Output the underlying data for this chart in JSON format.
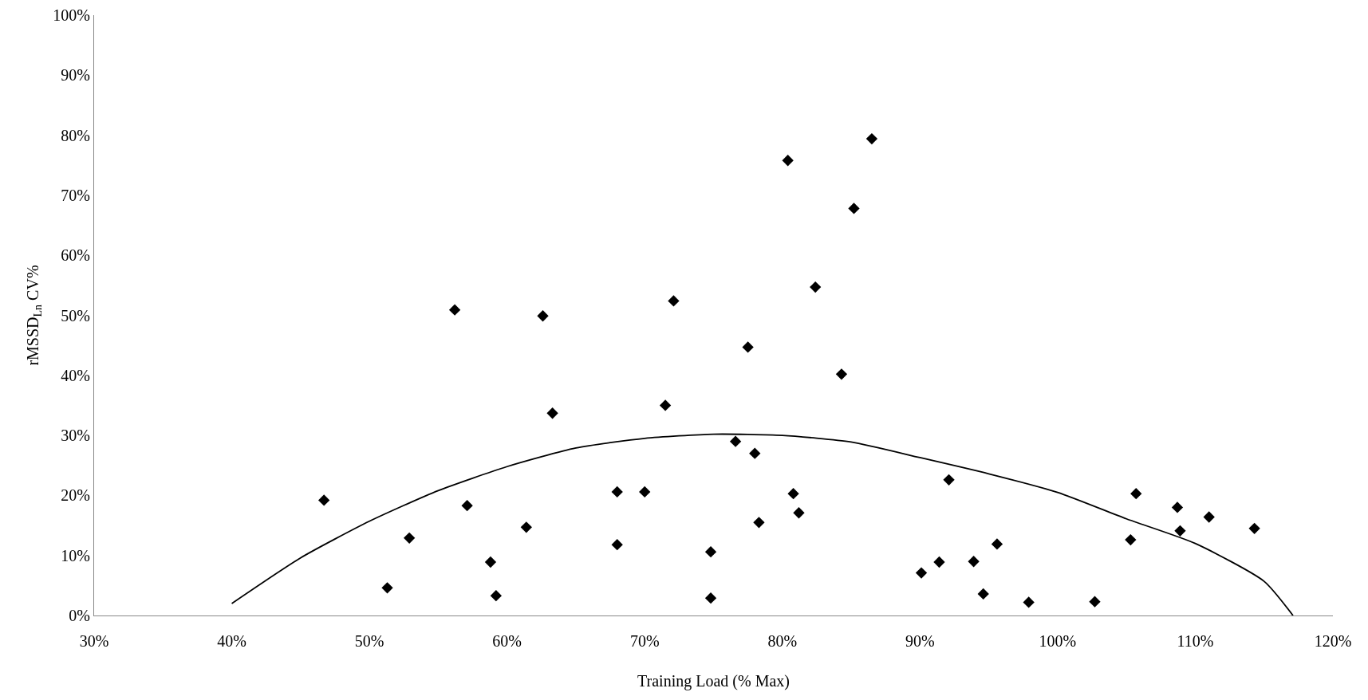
{
  "chart_data": {
    "type": "scatter",
    "xlabel": "Training Load (% Max)",
    "ylabel": "rMSSD$_{Ln}$ CV%",
    "xlim": [
      30,
      120
    ],
    "ylim": [
      0,
      100
    ],
    "xticks": [
      {
        "value": 30,
        "label": "30%"
      },
      {
        "value": 40,
        "label": "40%"
      },
      {
        "value": 50,
        "label": "50%"
      },
      {
        "value": 60,
        "label": "60%"
      },
      {
        "value": 70,
        "label": "70%"
      },
      {
        "value": 80,
        "label": "80%"
      },
      {
        "value": 90,
        "label": "90%"
      },
      {
        "value": 100,
        "label": "100%"
      },
      {
        "value": 110,
        "label": "110%"
      },
      {
        "value": 120,
        "label": "120%"
      }
    ],
    "yticks": [
      {
        "value": 0,
        "label": "0%"
      },
      {
        "value": 10,
        "label": "10%"
      },
      {
        "value": 20,
        "label": "20%"
      },
      {
        "value": 30,
        "label": "30%"
      },
      {
        "value": 40,
        "label": "40%"
      },
      {
        "value": 50,
        "label": "50%"
      },
      {
        "value": 60,
        "label": "60%"
      },
      {
        "value": 70,
        "label": "70%"
      },
      {
        "value": 80,
        "label": "80%"
      },
      {
        "value": 90,
        "label": "90%"
      },
      {
        "value": 100,
        "label": "100%"
      }
    ],
    "grid": false,
    "marker": "diamond",
    "series": [
      {
        "color": "#000000",
        "x": [
          46.7,
          51.3,
          52.9,
          56.2,
          57.1,
          58.8,
          59.2,
          61.4,
          62.6,
          63.3,
          68.0,
          68.0,
          70.0,
          71.5,
          72.1,
          74.8,
          74.8,
          76.6,
          77.5,
          78.0,
          78.3,
          80.4,
          80.8,
          81.2,
          82.4,
          84.3,
          85.2,
          86.5,
          90.1,
          91.4,
          92.1,
          93.9,
          94.6,
          95.6,
          97.9,
          102.7,
          105.3,
          105.7,
          108.7,
          108.9,
          111.0,
          114.3
        ],
        "values": [
          19.2,
          4.6,
          12.9,
          50.9,
          18.3,
          8.9,
          3.3,
          14.7,
          49.9,
          33.7,
          20.6,
          11.8,
          20.6,
          35.0,
          52.4,
          10.6,
          2.9,
          29.0,
          44.7,
          27.0,
          15.5,
          75.8,
          20.3,
          17.1,
          54.7,
          40.2,
          67.8,
          79.4,
          7.1,
          8.9,
          22.6,
          9.0,
          3.6,
          11.9,
          2.2,
          2.3,
          12.6,
          20.3,
          18.0,
          14.1,
          16.4,
          14.5
        ]
      },
      {
        "type": "line",
        "color": "#000000",
        "marker": "none",
        "line_style": "solid",
        "x": [
          40,
          45,
          50,
          55,
          60,
          65,
          70,
          75,
          80,
          85,
          90,
          95,
          100,
          105,
          110,
          115,
          117.1
        ],
        "values": [
          2.0,
          9.6,
          15.7,
          20.8,
          24.8,
          27.9,
          29.5,
          30.2,
          30.0,
          28.9,
          26.3,
          23.6,
          20.5,
          16.1,
          12.0,
          5.7,
          0
        ]
      }
    ]
  }
}
